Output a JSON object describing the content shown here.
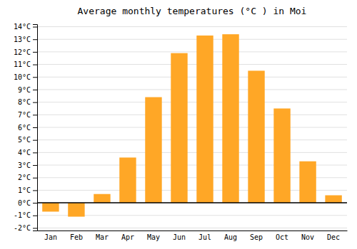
{
  "chart_data": {
    "type": "bar",
    "title": "Average monthly temperatures (°C ) in Moi",
    "categories": [
      "Jan",
      "Feb",
      "Mar",
      "Apr",
      "May",
      "Jun",
      "Jul",
      "Aug",
      "Sep",
      "Oct",
      "Nov",
      "Dec"
    ],
    "values": [
      -0.7,
      -1.1,
      0.7,
      3.6,
      8.4,
      11.9,
      13.3,
      13.4,
      10.5,
      7.5,
      3.3,
      0.6
    ],
    "color": "#FFA726",
    "ylim": [
      -2.2,
      14.2
    ],
    "yticks": [
      {
        "value": -2,
        "label": "-2°C"
      },
      {
        "value": -1,
        "label": "-1°C"
      },
      {
        "value": 0,
        "label": "0°C"
      },
      {
        "value": 1,
        "label": "1°C"
      },
      {
        "value": 2,
        "label": "2°C"
      },
      {
        "value": 3,
        "label": "3°C"
      },
      {
        "value": 4,
        "label": "4°C"
      },
      {
        "value": 5,
        "label": "5°C"
      },
      {
        "value": 6,
        "label": "6°C"
      },
      {
        "value": 7,
        "label": "7°C"
      },
      {
        "value": 8,
        "label": "8°C"
      },
      {
        "value": 9,
        "label": "9°C"
      },
      {
        "value": 10,
        "label": "10°C"
      },
      {
        "value": 11,
        "label": "11°C"
      },
      {
        "value": 12,
        "label": "12°C"
      },
      {
        "value": 13,
        "label": "13°C"
      },
      {
        "value": 14,
        "label": "14°C"
      }
    ],
    "grid": true
  }
}
